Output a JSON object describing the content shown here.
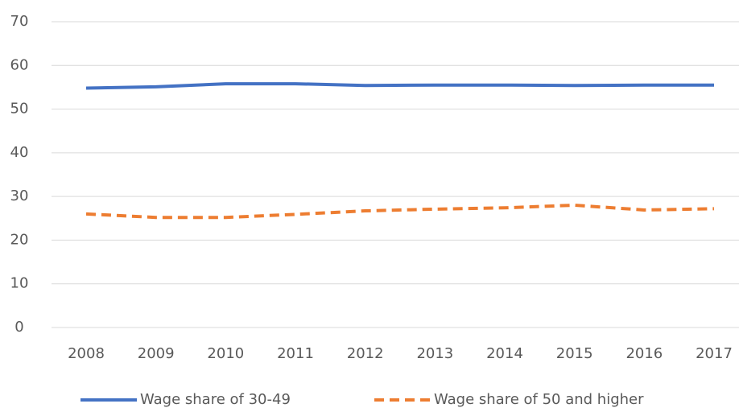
{
  "chart_data": {
    "type": "line",
    "categories": [
      "2008",
      "2009",
      "2010",
      "2011",
      "2012",
      "2013",
      "2014",
      "2015",
      "2016",
      "2017"
    ],
    "series": [
      {
        "name": "Wage share of 30-49",
        "color": "#4472c4",
        "dash": false,
        "values": [
          54.8,
          55.1,
          55.8,
          55.8,
          55.4,
          55.5,
          55.5,
          55.4,
          55.5,
          55.5
        ]
      },
      {
        "name": "Wage share of 50 and higher",
        "color": "#ed7d31",
        "dash": true,
        "values": [
          26.0,
          25.2,
          25.2,
          25.9,
          26.7,
          27.1,
          27.4,
          28.0,
          26.9,
          27.2
        ]
      }
    ],
    "ylim": [
      0,
      70
    ],
    "yticks": [
      0,
      10,
      20,
      30,
      40,
      50,
      60,
      70
    ],
    "grid": true,
    "legend": "bottom"
  }
}
